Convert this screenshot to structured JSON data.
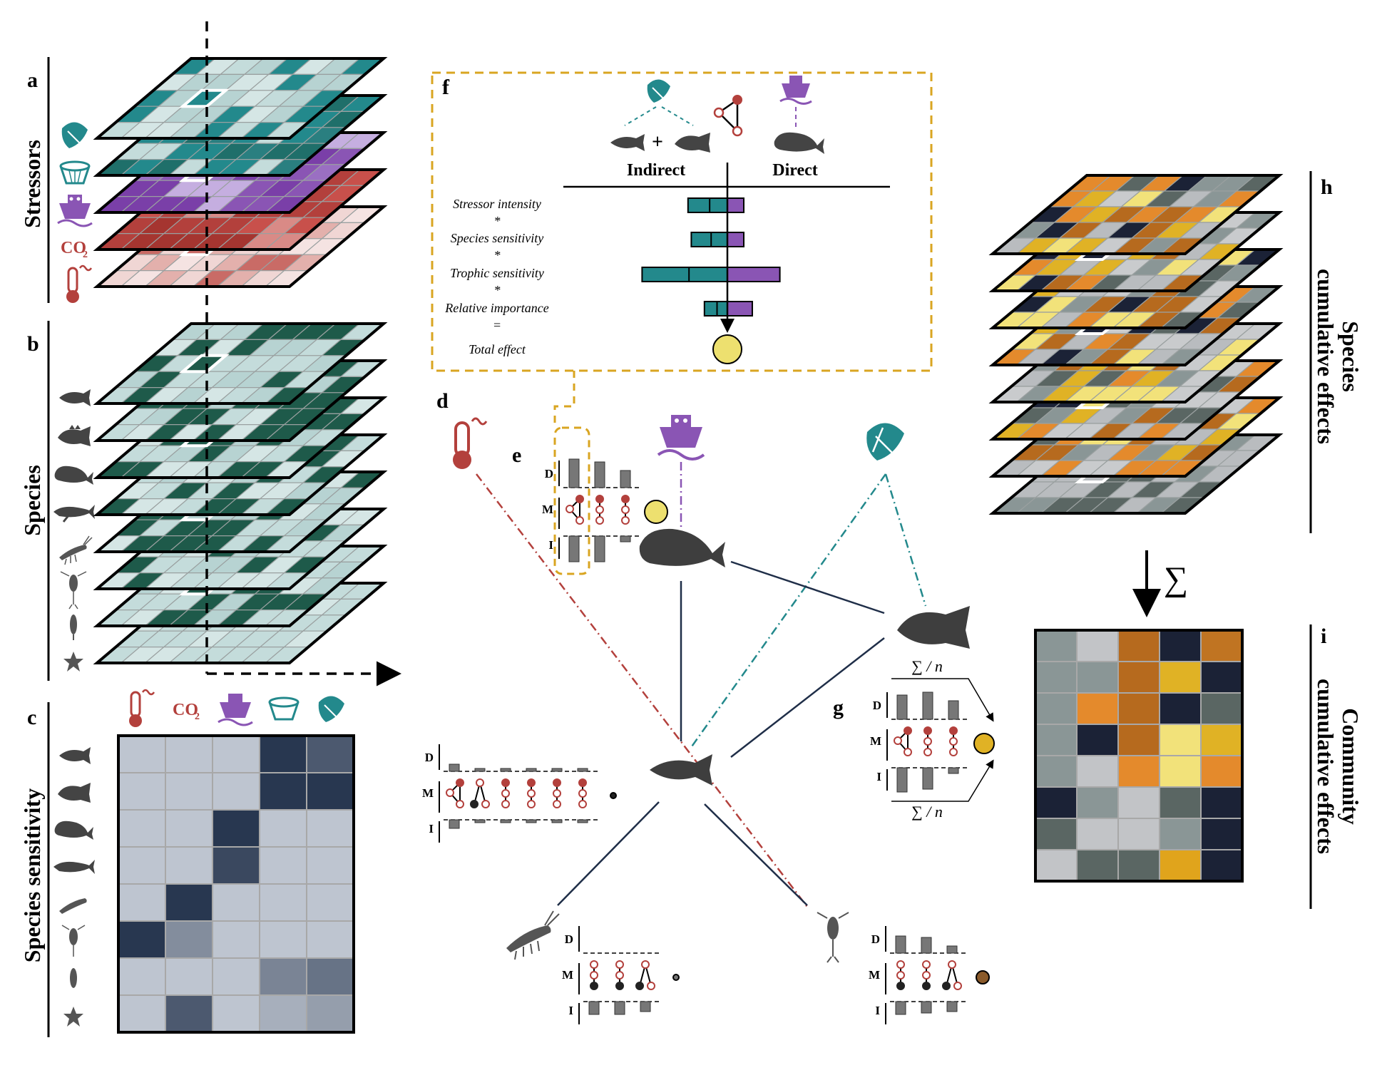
{
  "panels": {
    "a": "a",
    "b": "b",
    "c": "c",
    "d": "d",
    "e": "e",
    "f": "f",
    "g": "g",
    "h": "h",
    "i": "i"
  },
  "labels": {
    "stressors": "Stressors",
    "species": "Species",
    "species_sensitivity": "Species sensitivity",
    "species_cumulative_line1": "Species",
    "species_cumulative_line2": "cumulative effects",
    "community_cumulative_line1": "Community",
    "community_cumulative_line2": "cumulative effects"
  },
  "stressor_icons": [
    "fishing-net-icon",
    "trawl-net-icon",
    "shipping-icon",
    "co2-icon",
    "temperature-icon"
  ],
  "co2_text": "CO",
  "co2_sub": "2",
  "species_icons": [
    "cod-icon",
    "sculpin-icon",
    "beluga-icon",
    "humpback-whale-icon",
    "krill-icon",
    "copepod-icon",
    "larva-icon",
    "sea-star-icon"
  ],
  "panel_f": {
    "indirect": "Indirect",
    "direct": "Direct",
    "plus": "+",
    "formula": [
      "Stressor intensity",
      "*",
      "Species sensitivity",
      "*",
      "Trophic sensitivity",
      "*",
      "Relative importance",
      "=",
      "Total effect"
    ],
    "bars": [
      {
        "indirect": 0.6,
        "direct": 0.25
      },
      {
        "indirect": 0.55,
        "direct": 0.25
      },
      {
        "indirect": 1.3,
        "direct": 0.8
      },
      {
        "indirect": 0.35,
        "direct": 0.38
      }
    ]
  },
  "motif_rows": {
    "direct": "D",
    "motif": "M",
    "indirect": "I"
  },
  "sum_symbol": "∑",
  "sum_n": "∑ / n",
  "sensitivity_matrix": [
    [
      0.12,
      0.12,
      0.12,
      0.95,
      0.75
    ],
    [
      0.12,
      0.12,
      0.12,
      0.95,
      0.95
    ],
    [
      0.12,
      0.12,
      0.95,
      0.12,
      0.12
    ],
    [
      0.12,
      0.12,
      0.85,
      0.12,
      0.12
    ],
    [
      0.12,
      0.95,
      0.12,
      0.12,
      0.12
    ],
    [
      0.95,
      0.45,
      0.12,
      0.12,
      0.12
    ],
    [
      0.12,
      0.12,
      0.12,
      0.5,
      0.6
    ],
    [
      0.12,
      0.75,
      0.12,
      0.25,
      0.35
    ]
  ],
  "community_matrix": [
    [
      "#8a9696",
      "#c2c4c7",
      "#b66a1e",
      "#1b2236",
      "#c07422"
    ],
    [
      "#8a9696",
      "#8a9696",
      "#b66a1e",
      "#e0b225",
      "#1b2236"
    ],
    [
      "#8a9696",
      "#e48a2c",
      "#b66a1e",
      "#1b2236",
      "#5a6663"
    ],
    [
      "#8a9696",
      "#1b2236",
      "#b66a1e",
      "#f2e27a",
      "#e0b225"
    ],
    [
      "#8a9696",
      "#c2c4c7",
      "#e48a2c",
      "#f2e27a",
      "#e48a2c"
    ],
    [
      "#1b2236",
      "#8a9696",
      "#c2c4c7",
      "#5a6663",
      "#1b2236"
    ],
    [
      "#5a6663",
      "#c2c4c7",
      "#c2c4c7",
      "#8a9696",
      "#1b2236"
    ],
    [
      "#c2c4c7",
      "#5a6663",
      "#5a6663",
      "#e0a41c",
      "#1b2236"
    ]
  ],
  "colors": {
    "teal": "#23898c",
    "teal_dark": "#1f6f6a",
    "purple": "#8a55b4",
    "red": "#b3403c",
    "dark_green": "#1e5a4a",
    "navy": "#1f2e48",
    "gold": "#d9a521",
    "yellow": "#ede06f",
    "grey_bar": "#777777"
  }
}
